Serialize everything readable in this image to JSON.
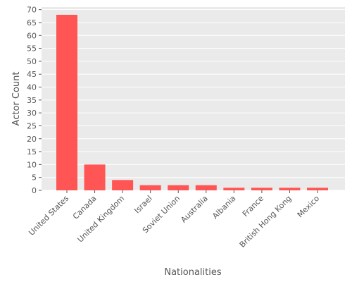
{
  "chart_data": {
    "type": "bar",
    "title": "",
    "xlabel": "Nationalities",
    "ylabel": "Actor Count",
    "categories": [
      "United States",
      "Canada",
      "United Kingdom",
      "Israel",
      "Soviet Union",
      "Australia",
      "Albania",
      "France",
      "British Hong Kong",
      "Mexico"
    ],
    "values": [
      68,
      10,
      4,
      2,
      2,
      2,
      1,
      1,
      1,
      1
    ],
    "ylim": [
      0,
      71
    ],
    "yticks": [
      0,
      5,
      10,
      15,
      20,
      25,
      30,
      35,
      40,
      45,
      50,
      55,
      60,
      65,
      70
    ],
    "grid": true,
    "legend": "none",
    "colors": {
      "bar": "#ff5555",
      "plot_background": "#eaeaea",
      "grid": "#ffffff",
      "text": "#555555"
    }
  }
}
